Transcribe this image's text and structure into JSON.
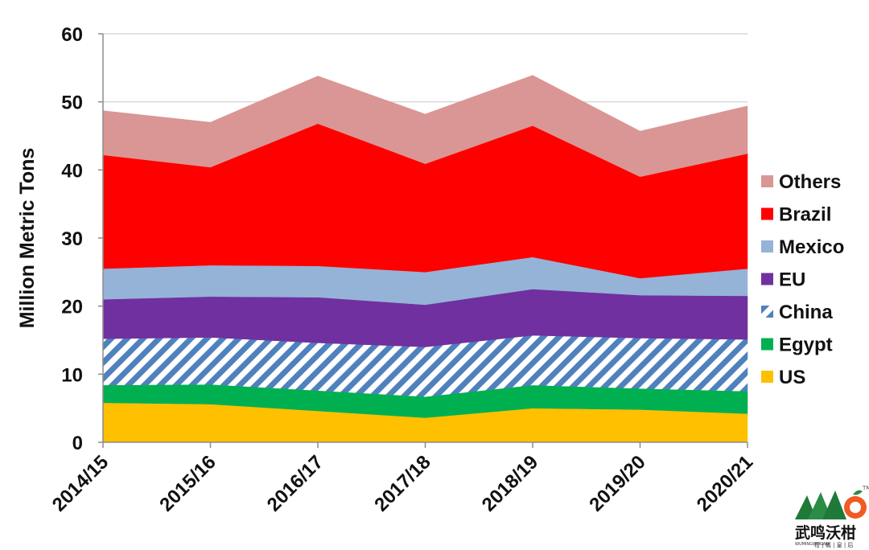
{
  "chart_data": {
    "type": "area",
    "stacked": true,
    "title": "",
    "xlabel": "",
    "ylabel": "Million Metric Tons",
    "categories": [
      "2014/15",
      "2015/16",
      "2016/17",
      "2017/18",
      "2018/19",
      "2019/20",
      "2020/21"
    ],
    "ylim": [
      0,
      60
    ],
    "yticks": [
      0,
      10,
      20,
      30,
      40,
      50,
      60
    ],
    "grid": "horizontal",
    "legend_position": "right",
    "series": [
      {
        "name": "US",
        "color": "#FFC000",
        "values": [
          5.8,
          5.6,
          4.6,
          3.6,
          5.0,
          4.8,
          4.2
        ]
      },
      {
        "name": "Egypt",
        "color": "#00B050",
        "values": [
          2.6,
          2.9,
          3.0,
          3.1,
          3.4,
          3.1,
          3.3
        ]
      },
      {
        "name": "China",
        "color": "#4F81BD",
        "pattern": "diagonal-stripes",
        "values": [
          6.8,
          6.9,
          7.0,
          7.3,
          7.3,
          7.4,
          7.6
        ]
      },
      {
        "name": "EU",
        "color": "#7030A0",
        "values": [
          5.8,
          6.0,
          6.7,
          6.2,
          6.8,
          6.3,
          6.4
        ]
      },
      {
        "name": "Mexico",
        "color": "#95B3D7",
        "values": [
          4.5,
          4.6,
          4.6,
          4.8,
          4.7,
          2.5,
          4.0
        ]
      },
      {
        "name": "Brazil",
        "color": "#FF0000",
        "values": [
          16.7,
          14.4,
          20.9,
          15.9,
          19.3,
          14.9,
          16.9
        ]
      },
      {
        "name": "Others",
        "color": "#DA9694",
        "values": [
          6.5,
          6.6,
          7.0,
          7.3,
          7.4,
          6.7,
          7.0
        ]
      }
    ],
    "legend_order": [
      "Others",
      "Brazil",
      "Mexico",
      "EU",
      "China",
      "Egypt",
      "US"
    ]
  },
  "logo": {
    "text": "武鸣沃柑",
    "subtext": "柑 | 橘 | 皇 | 后",
    "pinyin": "WUMINGWOGAN",
    "trademark": "TM"
  }
}
